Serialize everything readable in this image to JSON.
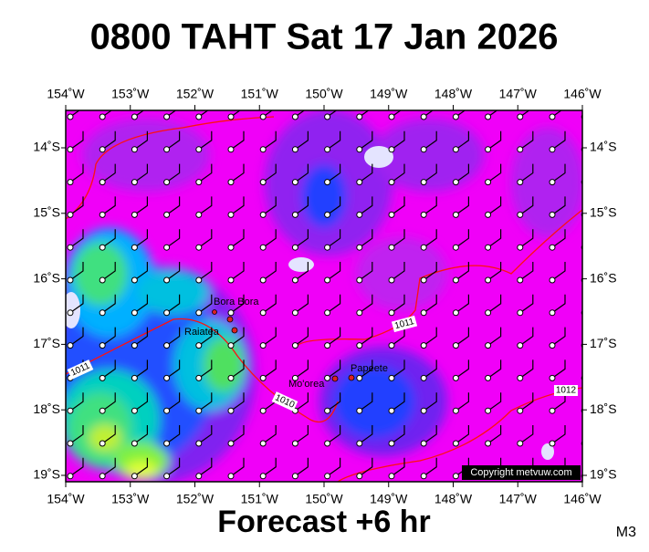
{
  "title": "0800 TAHT Sat 17 Jan 2026",
  "subtitle": "Forecast +6 hr",
  "model": "M3",
  "longitudes": [
    "154˚W",
    "153˚W",
    "152˚W",
    "151˚W",
    "150˚W",
    "149˚W",
    "148˚W",
    "147˚W",
    "146˚W"
  ],
  "latitudes": [
    "14˚S",
    "15˚S",
    "16˚S",
    "17˚S",
    "18˚S",
    "19˚S"
  ],
  "places": [
    "Bora Bora",
    "Raiatea",
    "Mo'orea",
    "Papeete"
  ],
  "isobar_labels": [
    "1010",
    "1011",
    "1012"
  ],
  "copyright": "Copyright metvuw.com"
}
